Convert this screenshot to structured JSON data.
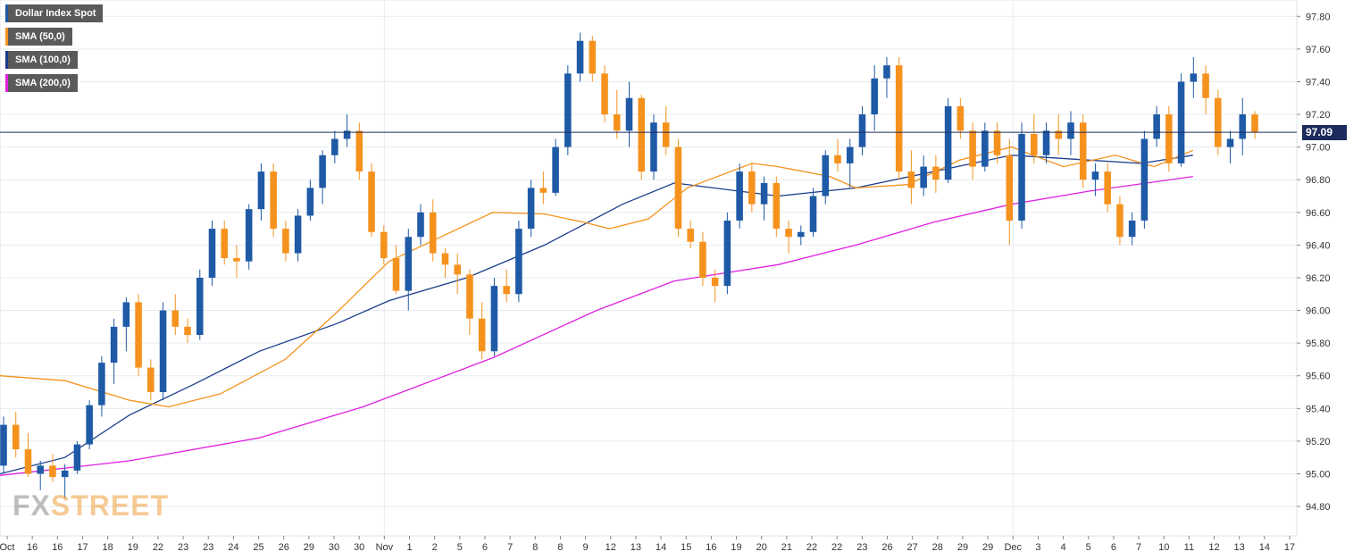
{
  "legend": [
    {
      "label": "Dollar Index Spot",
      "color": "#1f5aa6"
    },
    {
      "label": "SMA (50,0)",
      "color": "#f5921e"
    },
    {
      "label": "SMA (100,0)",
      "color": "#1c3d8c"
    },
    {
      "label": "SMA (200,0)",
      "color": "#e020e0"
    }
  ],
  "watermark": {
    "part1": "FX",
    "part2": "STREET"
  },
  "last_price": "97.09",
  "chart_data": {
    "type": "candlestick",
    "title": "",
    "ylim": [
      94.62,
      97.9
    ],
    "y_ticks": [
      "97.80",
      "97.60",
      "97.40",
      "97.20",
      "97.00",
      "96.80",
      "96.60",
      "96.40",
      "96.20",
      "96.00",
      "95.80",
      "95.60",
      "95.40",
      "95.20",
      "95.00",
      "94.80"
    ],
    "x_ticks": [
      "Oct",
      "16",
      "16",
      "17",
      "18",
      "19",
      "22",
      "23",
      "23",
      "24",
      "25",
      "26",
      "29",
      "30",
      "30",
      "Nov",
      "1",
      "2",
      "5",
      "6",
      "7",
      "8",
      "8",
      "9",
      "12",
      "13",
      "14",
      "15",
      "16",
      "19",
      "20",
      "21",
      "22",
      "22",
      "23",
      "26",
      "27",
      "28",
      "29",
      "29",
      "Dec",
      "3",
      "4",
      "5",
      "6",
      "7",
      "10",
      "11",
      "12",
      "13",
      "14",
      "17"
    ],
    "colors": {
      "up": "#1f5aa6",
      "down": "#f5921e",
      "sma50": "#f5921e",
      "sma100": "#1c3d8c",
      "sma200": "#e020e0",
      "last_line": "#1c2a5c"
    },
    "last_value": 97.09,
    "candles_ohlc": [
      [
        95.05,
        95.35,
        95.0,
        95.3
      ],
      [
        95.3,
        95.38,
        95.1,
        95.15
      ],
      [
        95.15,
        95.25,
        94.98,
        95.0
      ],
      [
        95.0,
        95.08,
        94.9,
        95.05
      ],
      [
        95.05,
        95.12,
        94.95,
        94.98
      ],
      [
        94.98,
        95.06,
        94.85,
        95.02
      ],
      [
        95.02,
        95.2,
        95.0,
        95.18
      ],
      [
        95.18,
        95.45,
        95.15,
        95.42
      ],
      [
        95.42,
        95.72,
        95.35,
        95.68
      ],
      [
        95.68,
        95.95,
        95.55,
        95.9
      ],
      [
        95.9,
        96.08,
        95.75,
        96.05
      ],
      [
        96.05,
        96.1,
        95.6,
        95.65
      ],
      [
        95.65,
        95.7,
        95.45,
        95.5
      ],
      [
        95.5,
        96.05,
        95.45,
        96.0
      ],
      [
        96.0,
        96.1,
        95.85,
        95.9
      ],
      [
        95.9,
        95.95,
        95.8,
        95.85
      ],
      [
        95.85,
        96.25,
        95.82,
        96.2
      ],
      [
        96.2,
        96.55,
        96.15,
        96.5
      ],
      [
        96.5,
        96.55,
        96.28,
        96.32
      ],
      [
        96.32,
        96.4,
        96.2,
        96.3
      ],
      [
        96.3,
        96.65,
        96.25,
        96.62
      ],
      [
        96.62,
        96.9,
        96.55,
        96.85
      ],
      [
        96.85,
        96.9,
        96.45,
        96.5
      ],
      [
        96.5,
        96.55,
        96.3,
        96.35
      ],
      [
        96.35,
        96.62,
        96.3,
        96.58
      ],
      [
        96.58,
        96.8,
        96.55,
        96.75
      ],
      [
        96.75,
        96.98,
        96.65,
        96.95
      ],
      [
        96.95,
        97.1,
        96.9,
        97.05
      ],
      [
        97.05,
        97.2,
        97.0,
        97.1
      ],
      [
        97.1,
        97.15,
        96.8,
        96.85
      ],
      [
        96.85,
        96.9,
        96.45,
        96.48
      ],
      [
        96.48,
        96.52,
        96.28,
        96.32
      ],
      [
        96.32,
        96.4,
        96.1,
        96.12
      ],
      [
        96.12,
        96.5,
        96.0,
        96.45
      ],
      [
        96.45,
        96.65,
        96.4,
        96.6
      ],
      [
        96.6,
        96.68,
        96.3,
        96.35
      ],
      [
        96.35,
        96.38,
        96.2,
        96.28
      ],
      [
        96.28,
        96.35,
        96.1,
        96.22
      ],
      [
        96.22,
        96.25,
        95.85,
        95.95
      ],
      [
        95.95,
        96.05,
        95.7,
        95.75
      ],
      [
        95.75,
        96.2,
        95.72,
        96.15
      ],
      [
        96.15,
        96.25,
        96.05,
        96.1
      ],
      [
        96.1,
        96.55,
        96.05,
        96.5
      ],
      [
        96.5,
        96.8,
        96.45,
        96.75
      ],
      [
        96.75,
        96.85,
        96.65,
        96.72
      ],
      [
        96.72,
        97.05,
        96.7,
        97.0
      ],
      [
        97.0,
        97.5,
        96.95,
        97.45
      ],
      [
        97.45,
        97.7,
        97.4,
        97.65
      ],
      [
        97.65,
        97.68,
        97.4,
        97.45
      ],
      [
        97.45,
        97.5,
        97.15,
        97.2
      ],
      [
        97.2,
        97.35,
        97.05,
        97.1
      ],
      [
        97.1,
        97.4,
        97.0,
        97.3
      ],
      [
        97.3,
        97.32,
        96.8,
        96.85
      ],
      [
        96.85,
        97.2,
        96.8,
        97.15
      ],
      [
        97.15,
        97.25,
        96.95,
        97.0
      ],
      [
        97.0,
        97.05,
        96.45,
        96.5
      ],
      [
        96.5,
        96.55,
        96.38,
        96.42
      ],
      [
        96.42,
        96.48,
        96.15,
        96.2
      ],
      [
        96.2,
        96.25,
        96.05,
        96.15
      ],
      [
        96.15,
        96.6,
        96.1,
        96.55
      ],
      [
        96.55,
        96.9,
        96.5,
        96.85
      ],
      [
        96.85,
        96.9,
        96.6,
        96.65
      ],
      [
        96.65,
        96.82,
        96.55,
        96.78
      ],
      [
        96.78,
        96.82,
        96.45,
        96.5
      ],
      [
        96.5,
        96.55,
        96.35,
        96.45
      ],
      [
        96.45,
        96.52,
        96.4,
        96.48
      ],
      [
        96.48,
        96.75,
        96.45,
        96.7
      ],
      [
        96.7,
        96.98,
        96.65,
        96.95
      ],
      [
        96.95,
        97.05,
        96.85,
        96.9
      ],
      [
        96.9,
        97.05,
        96.75,
        97.0
      ],
      [
        97.0,
        97.25,
        96.95,
        97.2
      ],
      [
        97.2,
        97.5,
        97.1,
        97.42
      ],
      [
        97.42,
        97.55,
        97.3,
        97.5
      ],
      [
        97.5,
        97.55,
        96.8,
        96.85
      ],
      [
        96.85,
        96.98,
        96.65,
        96.75
      ],
      [
        96.75,
        96.95,
        96.7,
        96.88
      ],
      [
        96.88,
        96.95,
        96.72,
        96.8
      ],
      [
        96.8,
        97.3,
        96.78,
        97.25
      ],
      [
        97.25,
        97.3,
        97.05,
        97.1
      ],
      [
        97.1,
        97.15,
        96.8,
        96.88
      ],
      [
        96.88,
        97.15,
        96.85,
        97.1
      ],
      [
        97.1,
        97.15,
        96.9,
        96.95
      ],
      [
        96.95,
        97.05,
        96.4,
        96.55
      ],
      [
        96.55,
        97.15,
        96.5,
        97.08
      ],
      [
        97.08,
        97.2,
        96.9,
        96.95
      ],
      [
        96.95,
        97.15,
        96.9,
        97.1
      ],
      [
        97.1,
        97.2,
        96.95,
        97.05
      ],
      [
        97.05,
        97.22,
        96.95,
        97.15
      ],
      [
        97.15,
        97.2,
        96.75,
        96.8
      ],
      [
        96.8,
        96.9,
        96.7,
        96.85
      ],
      [
        96.85,
        96.9,
        96.6,
        96.65
      ],
      [
        96.65,
        96.7,
        96.4,
        96.45
      ],
      [
        96.45,
        96.6,
        96.4,
        96.55
      ],
      [
        96.55,
        97.1,
        96.5,
        97.05
      ],
      [
        97.05,
        97.25,
        97.0,
        97.2
      ],
      [
        97.2,
        97.25,
        96.85,
        96.9
      ],
      [
        96.9,
        97.45,
        96.88,
        97.4
      ],
      [
        97.4,
        97.55,
        97.3,
        97.45
      ],
      [
        97.45,
        97.5,
        97.2,
        97.3
      ],
      [
        97.3,
        97.35,
        96.95,
        97.0
      ],
      [
        97.0,
        97.1,
        96.9,
        97.05
      ],
      [
        97.05,
        97.3,
        96.95,
        97.2
      ],
      [
        97.2,
        97.22,
        97.05,
        97.09
      ]
    ],
    "sma50": [
      [
        0,
        95.6
      ],
      [
        0.05,
        95.57
      ],
      [
        0.1,
        95.45
      ],
      [
        0.13,
        95.41
      ],
      [
        0.17,
        95.49
      ],
      [
        0.22,
        95.7
      ],
      [
        0.26,
        95.99
      ],
      [
        0.3,
        96.3
      ],
      [
        0.34,
        96.45
      ],
      [
        0.38,
        96.6
      ],
      [
        0.42,
        96.59
      ],
      [
        0.45,
        96.54
      ],
      [
        0.47,
        96.5
      ],
      [
        0.5,
        96.56
      ],
      [
        0.53,
        96.75
      ],
      [
        0.58,
        96.9
      ],
      [
        0.6,
        96.88
      ],
      [
        0.64,
        96.82
      ],
      [
        0.66,
        96.75
      ],
      [
        0.7,
        96.77
      ],
      [
        0.74,
        96.92
      ],
      [
        0.78,
        97.0
      ],
      [
        0.82,
        96.88
      ],
      [
        0.86,
        96.95
      ],
      [
        0.89,
        96.88
      ],
      [
        0.92,
        96.98
      ]
    ],
    "sma100": [
      [
        0,
        95.0
      ],
      [
        0.05,
        95.1
      ],
      [
        0.1,
        95.36
      ],
      [
        0.15,
        95.55
      ],
      [
        0.2,
        95.75
      ],
      [
        0.26,
        95.92
      ],
      [
        0.3,
        96.06
      ],
      [
        0.36,
        96.2
      ],
      [
        0.42,
        96.4
      ],
      [
        0.48,
        96.65
      ],
      [
        0.52,
        96.78
      ],
      [
        0.6,
        96.7
      ],
      [
        0.66,
        96.75
      ],
      [
        0.72,
        96.85
      ],
      [
        0.78,
        96.95
      ],
      [
        0.84,
        96.92
      ],
      [
        0.88,
        96.9
      ],
      [
        0.92,
        96.95
      ]
    ],
    "sma200": [
      [
        0,
        94.99
      ],
      [
        0.1,
        95.08
      ],
      [
        0.2,
        95.22
      ],
      [
        0.28,
        95.41
      ],
      [
        0.38,
        95.71
      ],
      [
        0.46,
        96.0
      ],
      [
        0.52,
        96.18
      ],
      [
        0.6,
        96.28
      ],
      [
        0.66,
        96.4
      ],
      [
        0.72,
        96.54
      ],
      [
        0.78,
        96.65
      ],
      [
        0.84,
        96.73
      ],
      [
        0.92,
        96.82
      ]
    ]
  }
}
